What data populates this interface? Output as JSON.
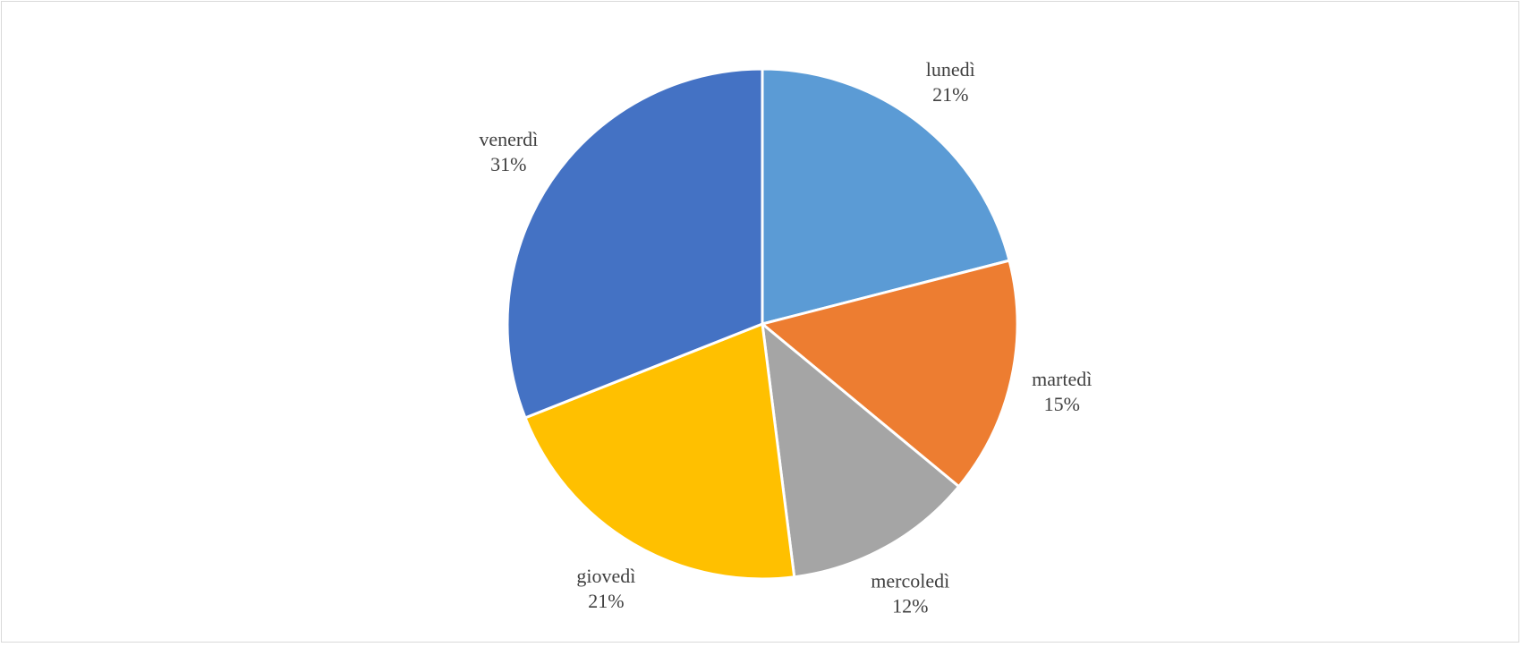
{
  "chart_data": {
    "type": "pie",
    "title": "",
    "categories": [
      "lunedì",
      "martedì",
      "mercoledì",
      "giovedì",
      "venerdì"
    ],
    "values": [
      21,
      15,
      12,
      21,
      31
    ],
    "value_labels": [
      "21%",
      "15%",
      "12%",
      "21%",
      "31%"
    ],
    "colors": [
      "#5B9BD5",
      "#ED7D31",
      "#A5A5A5",
      "#FFC000",
      "#4472C4"
    ],
    "start_angle": "12 o'clock",
    "direction": "clockwise",
    "legend": "none",
    "data_labels": "outside"
  }
}
